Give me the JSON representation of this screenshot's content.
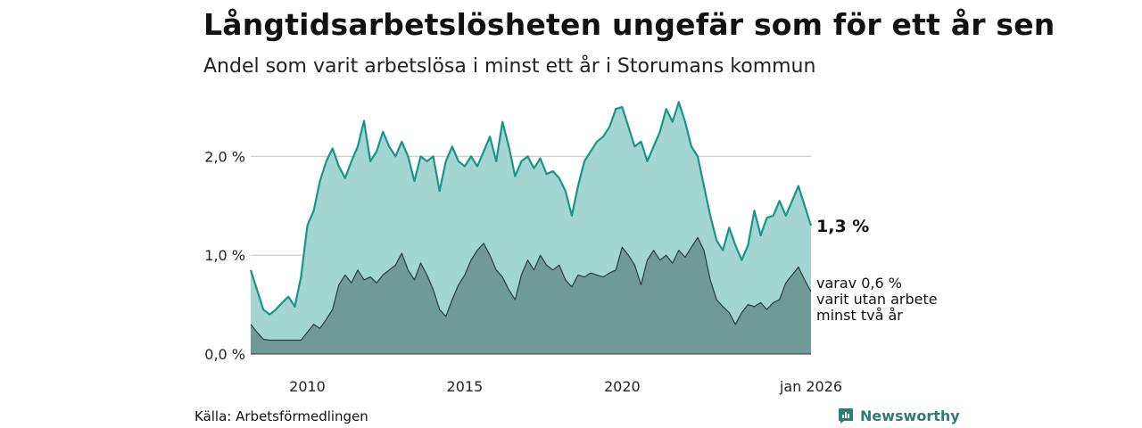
{
  "header": {
    "title": "Långtidsarbetslösheten ungefär som för ett år sen",
    "subtitle": "Andel som varit arbetslösa i minst ett år i Storumans kommun"
  },
  "footer": {
    "source": "Källa: Arbetsförmedlingen",
    "brand": "Newsworthy"
  },
  "colors": {
    "line_total": "#1a9488",
    "area_total": "#a3d6d0",
    "area_sub": "#6f9a96",
    "line_sub": "#2a3c3a",
    "grid": "#cccccc"
  },
  "chart_data": {
    "type": "area",
    "title": "Långtidsarbetslösheten ungefär som för ett år sen",
    "subtitle": "Andel som varit arbetslösa i minst ett år i Storumans kommun",
    "x_range": [
      2008.2,
      2026.0
    ],
    "ylim": [
      0,
      2.5
    ],
    "y_ticks": [
      0,
      1,
      2
    ],
    "y_tick_labels": [
      "0,0 %",
      "1,0 %",
      "2,0 %"
    ],
    "x_ticks": [
      2010,
      2015,
      2020,
      2026
    ],
    "x_tick_labels": [
      "2010",
      "2015",
      "2020",
      "jan 2026"
    ],
    "grid": true,
    "series": [
      {
        "name": "Minst ett år",
        "end_label": "1,3 %",
        "points": [
          [
            2008.2,
            0.85
          ],
          [
            2008.4,
            0.65
          ],
          [
            2008.6,
            0.45
          ],
          [
            2008.8,
            0.4
          ],
          [
            2009.0,
            0.45
          ],
          [
            2009.2,
            0.52
          ],
          [
            2009.4,
            0.58
          ],
          [
            2009.6,
            0.48
          ],
          [
            2009.8,
            0.78
          ],
          [
            2010.0,
            1.3
          ],
          [
            2010.2,
            1.45
          ],
          [
            2010.4,
            1.75
          ],
          [
            2010.6,
            1.95
          ],
          [
            2010.8,
            2.08
          ],
          [
            2011.0,
            1.9
          ],
          [
            2011.2,
            1.78
          ],
          [
            2011.4,
            1.95
          ],
          [
            2011.6,
            2.1
          ],
          [
            2011.8,
            2.36
          ],
          [
            2012.0,
            1.95
          ],
          [
            2012.2,
            2.05
          ],
          [
            2012.4,
            2.25
          ],
          [
            2012.6,
            2.1
          ],
          [
            2012.8,
            2.0
          ],
          [
            2013.0,
            2.15
          ],
          [
            2013.2,
            2.0
          ],
          [
            2013.4,
            1.75
          ],
          [
            2013.6,
            2.0
          ],
          [
            2013.8,
            1.95
          ],
          [
            2014.0,
            2.0
          ],
          [
            2014.2,
            1.65
          ],
          [
            2014.4,
            1.95
          ],
          [
            2014.6,
            2.1
          ],
          [
            2014.8,
            1.95
          ],
          [
            2015.0,
            1.9
          ],
          [
            2015.2,
            2.0
          ],
          [
            2015.4,
            1.9
          ],
          [
            2015.6,
            2.05
          ],
          [
            2015.8,
            2.2
          ],
          [
            2016.0,
            1.95
          ],
          [
            2016.2,
            2.35
          ],
          [
            2016.4,
            2.1
          ],
          [
            2016.6,
            1.8
          ],
          [
            2016.8,
            1.95
          ],
          [
            2017.0,
            2.0
          ],
          [
            2017.2,
            1.88
          ],
          [
            2017.4,
            1.98
          ],
          [
            2017.6,
            1.82
          ],
          [
            2017.8,
            1.85
          ],
          [
            2018.0,
            1.78
          ],
          [
            2018.2,
            1.65
          ],
          [
            2018.4,
            1.4
          ],
          [
            2018.6,
            1.7
          ],
          [
            2018.8,
            1.95
          ],
          [
            2019.0,
            2.05
          ],
          [
            2019.2,
            2.15
          ],
          [
            2019.4,
            2.2
          ],
          [
            2019.6,
            2.3
          ],
          [
            2019.8,
            2.48
          ],
          [
            2020.0,
            2.5
          ],
          [
            2020.2,
            2.3
          ],
          [
            2020.4,
            2.1
          ],
          [
            2020.6,
            2.15
          ],
          [
            2020.8,
            1.95
          ],
          [
            2021.0,
            2.1
          ],
          [
            2021.2,
            2.25
          ],
          [
            2021.4,
            2.48
          ],
          [
            2021.6,
            2.35
          ],
          [
            2021.8,
            2.55
          ],
          [
            2022.0,
            2.35
          ],
          [
            2022.2,
            2.1
          ],
          [
            2022.4,
            2.0
          ],
          [
            2022.6,
            1.7
          ],
          [
            2022.8,
            1.4
          ],
          [
            2023.0,
            1.15
          ],
          [
            2023.2,
            1.05
          ],
          [
            2023.4,
            1.28
          ],
          [
            2023.6,
            1.1
          ],
          [
            2023.8,
            0.95
          ],
          [
            2024.0,
            1.1
          ],
          [
            2024.2,
            1.45
          ],
          [
            2024.4,
            1.2
          ],
          [
            2024.6,
            1.38
          ],
          [
            2024.8,
            1.4
          ],
          [
            2025.0,
            1.55
          ],
          [
            2025.2,
            1.4
          ],
          [
            2025.4,
            1.55
          ],
          [
            2025.6,
            1.7
          ],
          [
            2025.8,
            1.5
          ],
          [
            2026.0,
            1.3
          ]
        ]
      },
      {
        "name": "varav utan arbete minst två år",
        "end_label": [
          "varav 0,6 %",
          "varit utan arbete",
          "minst två år"
        ],
        "points": [
          [
            2008.2,
            0.3
          ],
          [
            2008.4,
            0.22
          ],
          [
            2008.6,
            0.15
          ],
          [
            2008.8,
            0.14
          ],
          [
            2009.0,
            0.14
          ],
          [
            2009.4,
            0.14
          ],
          [
            2009.8,
            0.14
          ],
          [
            2010.0,
            0.22
          ],
          [
            2010.2,
            0.3
          ],
          [
            2010.4,
            0.26
          ],
          [
            2010.6,
            0.35
          ],
          [
            2010.8,
            0.45
          ],
          [
            2011.0,
            0.7
          ],
          [
            2011.2,
            0.8
          ],
          [
            2011.4,
            0.72
          ],
          [
            2011.6,
            0.85
          ],
          [
            2011.8,
            0.75
          ],
          [
            2012.0,
            0.78
          ],
          [
            2012.2,
            0.72
          ],
          [
            2012.4,
            0.8
          ],
          [
            2012.6,
            0.85
          ],
          [
            2012.8,
            0.9
          ],
          [
            2013.0,
            1.02
          ],
          [
            2013.2,
            0.85
          ],
          [
            2013.4,
            0.75
          ],
          [
            2013.6,
            0.92
          ],
          [
            2013.8,
            0.8
          ],
          [
            2014.0,
            0.65
          ],
          [
            2014.2,
            0.45
          ],
          [
            2014.4,
            0.38
          ],
          [
            2014.6,
            0.55
          ],
          [
            2014.8,
            0.7
          ],
          [
            2015.0,
            0.8
          ],
          [
            2015.2,
            0.95
          ],
          [
            2015.4,
            1.05
          ],
          [
            2015.6,
            1.12
          ],
          [
            2015.8,
            1.0
          ],
          [
            2016.0,
            0.85
          ],
          [
            2016.2,
            0.78
          ],
          [
            2016.4,
            0.65
          ],
          [
            2016.6,
            0.55
          ],
          [
            2016.8,
            0.8
          ],
          [
            2017.0,
            0.95
          ],
          [
            2017.2,
            0.85
          ],
          [
            2017.4,
            1.0
          ],
          [
            2017.6,
            0.9
          ],
          [
            2017.8,
            0.85
          ],
          [
            2018.0,
            0.9
          ],
          [
            2018.2,
            0.75
          ],
          [
            2018.4,
            0.68
          ],
          [
            2018.6,
            0.8
          ],
          [
            2018.8,
            0.78
          ],
          [
            2019.0,
            0.82
          ],
          [
            2019.2,
            0.8
          ],
          [
            2019.4,
            0.78
          ],
          [
            2019.6,
            0.82
          ],
          [
            2019.8,
            0.85
          ],
          [
            2020.0,
            1.08
          ],
          [
            2020.2,
            1.0
          ],
          [
            2020.4,
            0.9
          ],
          [
            2020.6,
            0.7
          ],
          [
            2020.8,
            0.95
          ],
          [
            2021.0,
            1.05
          ],
          [
            2021.2,
            0.95
          ],
          [
            2021.4,
            1.0
          ],
          [
            2021.6,
            0.92
          ],
          [
            2021.8,
            1.05
          ],
          [
            2022.0,
            0.98
          ],
          [
            2022.2,
            1.08
          ],
          [
            2022.4,
            1.18
          ],
          [
            2022.6,
            1.05
          ],
          [
            2022.8,
            0.75
          ],
          [
            2023.0,
            0.55
          ],
          [
            2023.2,
            0.48
          ],
          [
            2023.4,
            0.42
          ],
          [
            2023.6,
            0.3
          ],
          [
            2023.8,
            0.42
          ],
          [
            2024.0,
            0.5
          ],
          [
            2024.2,
            0.48
          ],
          [
            2024.4,
            0.52
          ],
          [
            2024.6,
            0.45
          ],
          [
            2024.8,
            0.52
          ],
          [
            2025.0,
            0.55
          ],
          [
            2025.2,
            0.72
          ],
          [
            2025.4,
            0.8
          ],
          [
            2025.6,
            0.88
          ],
          [
            2025.8,
            0.75
          ],
          [
            2026.0,
            0.63
          ]
        ]
      }
    ]
  }
}
